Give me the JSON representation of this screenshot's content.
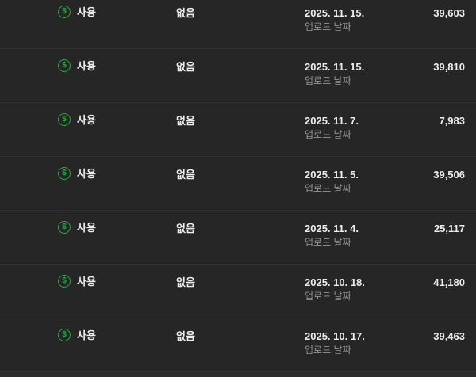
{
  "table": {
    "rows": [
      {
        "monetization": "사용",
        "restrictions": "없음",
        "date": "2025. 11. 15.",
        "date_label": "업로드 날짜",
        "views": "39,603"
      },
      {
        "monetization": "사용",
        "restrictions": "없음",
        "date": "2025. 11. 15.",
        "date_label": "업로드 날짜",
        "views": "39,810"
      },
      {
        "monetization": "사용",
        "restrictions": "없음",
        "date": "2025. 11. 7.",
        "date_label": "업로드 날짜",
        "views": "7,983"
      },
      {
        "monetization": "사용",
        "restrictions": "없음",
        "date": "2025. 11. 5.",
        "date_label": "업로드 날짜",
        "views": "39,506"
      },
      {
        "monetization": "사용",
        "restrictions": "없음",
        "date": "2025. 11. 4.",
        "date_label": "업로드 날짜",
        "views": "25,117"
      },
      {
        "monetization": "사용",
        "restrictions": "없음",
        "date": "2025. 10. 18.",
        "date_label": "업로드 날짜",
        "views": "41,180"
      },
      {
        "monetization": "사용",
        "restrictions": "없음",
        "date": "2025. 10. 17.",
        "date_label": "업로드 날짜",
        "views": "39,463"
      }
    ]
  },
  "icons": {
    "monetization": {
      "name": "monetization-on-icon",
      "glyph": "$",
      "color": "#2ba640"
    }
  },
  "colors": {
    "row_background": "#262626",
    "divider_dark": "#1b1b1b",
    "divider_light": "#373737",
    "text_primary": "#ededed",
    "text_secondary": "#969696",
    "monetization_green": "#2ba640",
    "bottom_strip": "#2c2c2c"
  }
}
